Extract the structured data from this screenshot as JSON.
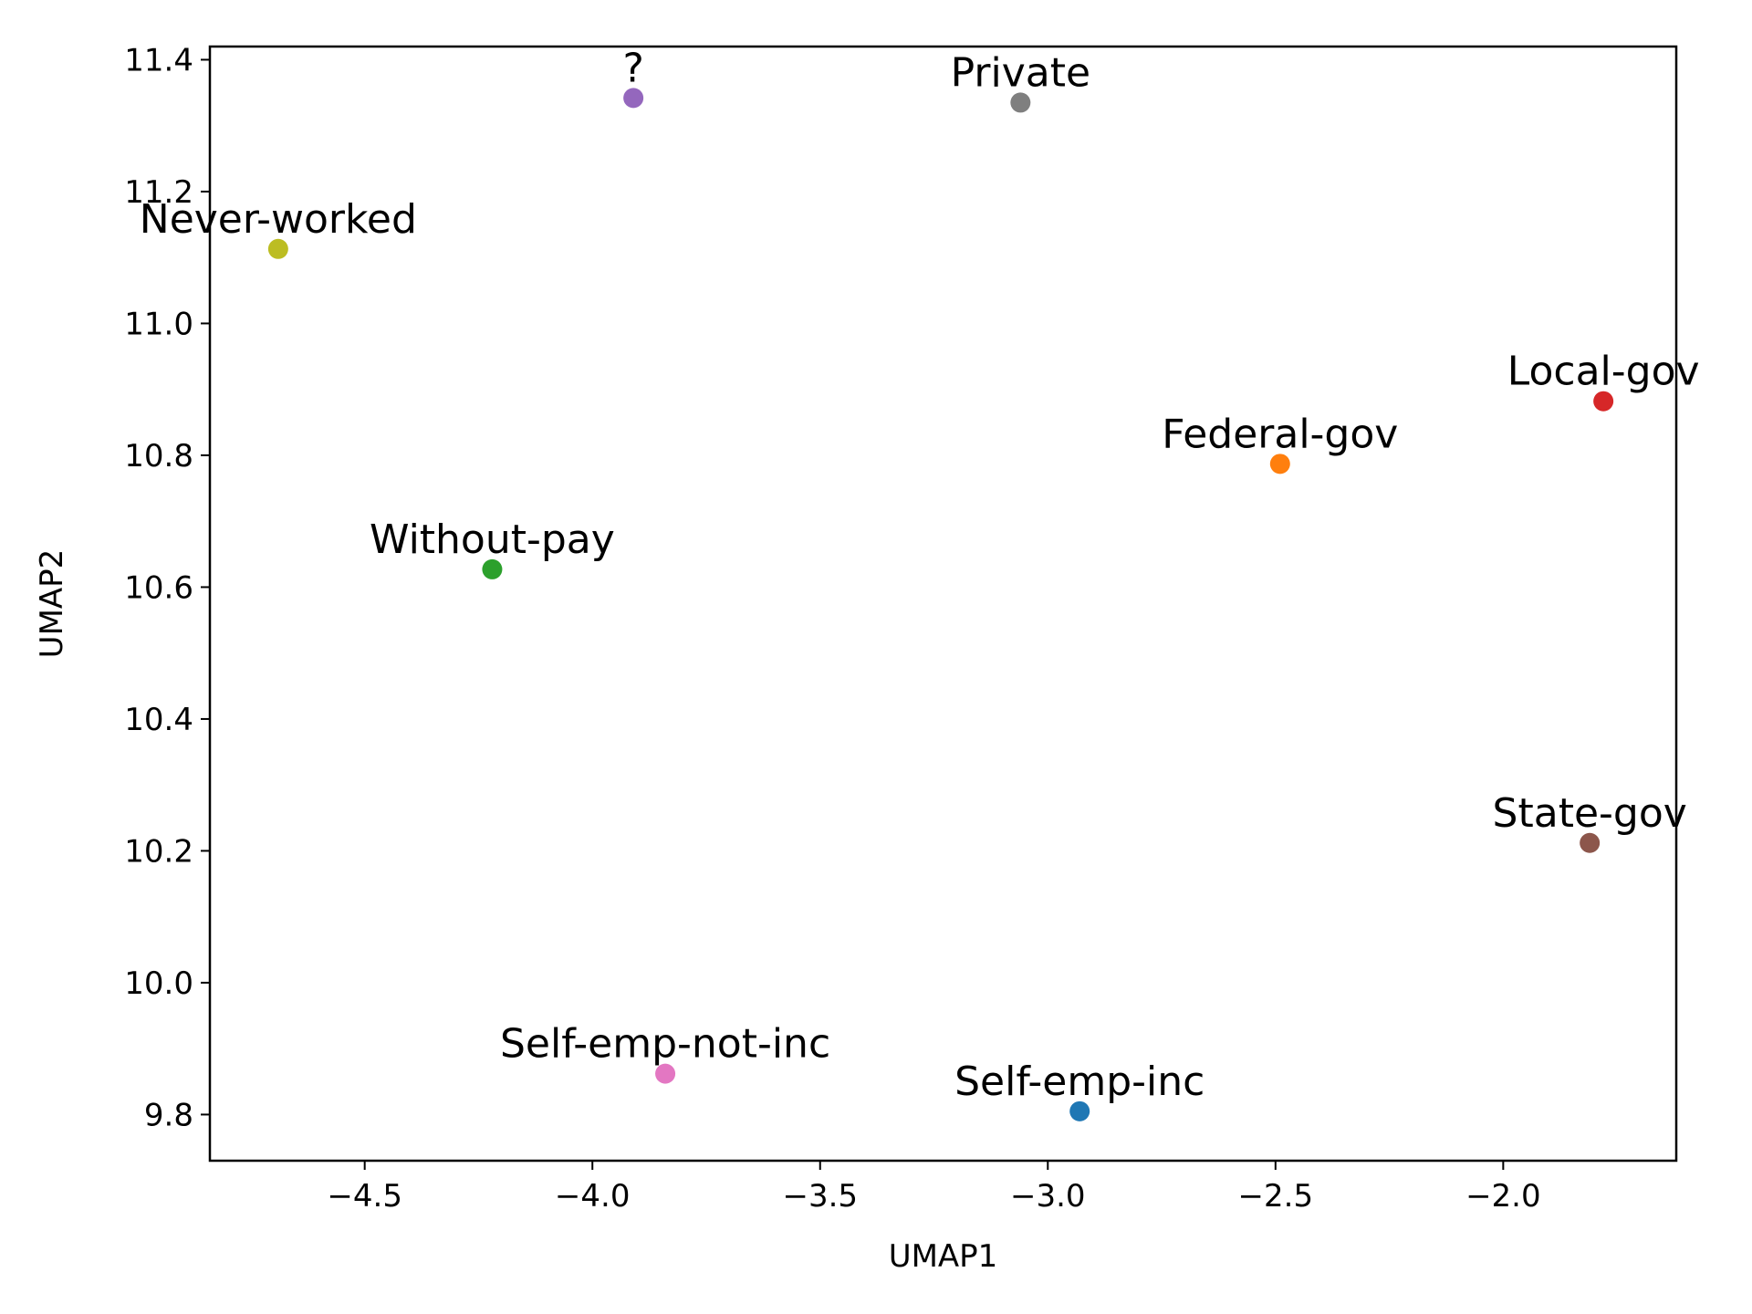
{
  "chart_data": {
    "type": "scatter",
    "title": "",
    "xlabel": "UMAP1",
    "ylabel": "UMAP2",
    "xlim": [
      -4.84,
      -1.62
    ],
    "ylim": [
      9.73,
      11.42
    ],
    "xticks": [
      -4.5,
      -4.0,
      -3.5,
      -3.0,
      -2.5,
      -2.0
    ],
    "xtick_labels": [
      "−4.5",
      "−4.0",
      "−3.5",
      "−3.0",
      "−2.5",
      "−2.0"
    ],
    "yticks": [
      9.8,
      10.0,
      10.2,
      10.4,
      10.6,
      10.8,
      11.0,
      11.2,
      11.4
    ],
    "ytick_labels": [
      "9.8",
      "10.0",
      "10.2",
      "10.4",
      "10.6",
      "10.8",
      "11.0",
      "11.2",
      "11.4"
    ],
    "grid": false,
    "points": [
      {
        "label": "Self-emp-inc",
        "x": -2.93,
        "y": 9.805,
        "color": "#1f77b4"
      },
      {
        "label": "Federal-gov",
        "x": -2.49,
        "y": 10.787,
        "color": "#ff7f0e"
      },
      {
        "label": "Without-pay",
        "x": -4.22,
        "y": 10.627,
        "color": "#2ca02c"
      },
      {
        "label": "Local-gov",
        "x": -1.78,
        "y": 10.882,
        "color": "#d62728"
      },
      {
        "label": "?",
        "x": -3.91,
        "y": 11.342,
        "color": "#9467bd"
      },
      {
        "label": "State-gov",
        "x": -1.81,
        "y": 10.212,
        "color": "#8c564b"
      },
      {
        "label": "Self-emp-not-inc",
        "x": -3.84,
        "y": 9.862,
        "color": "#e377c2"
      },
      {
        "label": "Private",
        "x": -3.06,
        "y": 11.335,
        "color": "#7f7f7f"
      },
      {
        "label": "Never-worked",
        "x": -4.69,
        "y": 11.113,
        "color": "#bcbd22"
      }
    ]
  }
}
